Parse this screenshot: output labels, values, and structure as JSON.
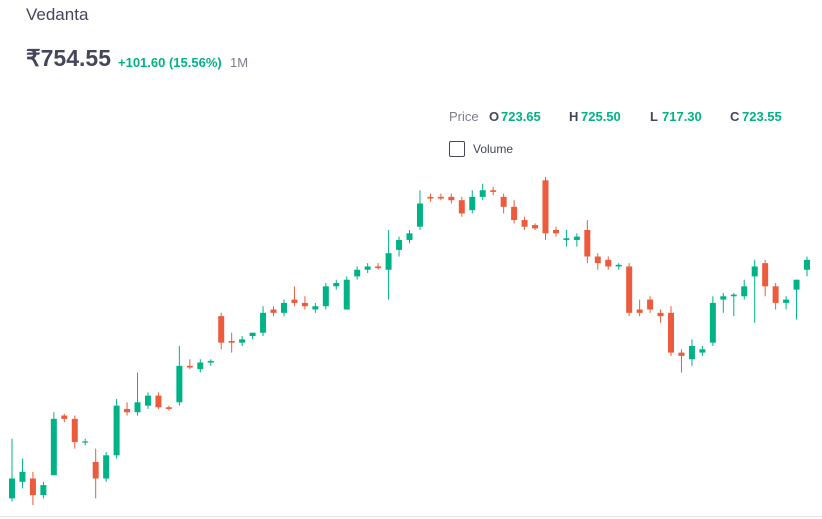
{
  "header": {
    "title": "Vedanta",
    "price": "₹754.55",
    "change": "+101.60 (15.56%)",
    "period": "1M"
  },
  "chart_data": {
    "type": "candlestick",
    "legend": {
      "label": "Price",
      "items": [
        {
          "key": "O",
          "value": "723.65"
        },
        {
          "key": "H",
          "value": "725.50"
        },
        {
          "key": "L",
          "value": "717.30"
        },
        {
          "key": "C",
          "value": "723.55"
        }
      ]
    },
    "volume_label": "Volume",
    "up_color": "#00b386",
    "down_color": "#eb5b3c",
    "open": [
      650,
      655,
      656,
      651,
      657,
      675,
      674,
      667,
      661,
      656,
      663,
      677,
      676,
      678,
      681,
      677.5,
      679,
      690,
      689,
      691,
      705,
      697.5,
      697,
      699,
      700,
      707,
      706,
      710,
      709,
      707,
      708,
      714,
      707,
      717,
      719,
      720,
      719,
      725,
      728,
      732,
      741,
      741,
      741,
      740,
      737,
      741,
      743,
      741,
      738,
      734,
      732.5,
      746,
      731,
      728,
      728,
      731,
      723,
      722,
      720,
      720,
      707,
      710,
      706,
      706,
      694,
      692,
      694,
      697,
      710,
      711,
      711,
      717,
      721,
      714,
      709,
      713,
      719
    ],
    "high": [
      668,
      662,
      658,
      655,
      676,
      675.5,
      675,
      668,
      665,
      664,
      680,
      679,
      688,
      682,
      682,
      678,
      696,
      692,
      692,
      692,
      706,
      700,
      699,
      700,
      708,
      708,
      710,
      714,
      711,
      709,
      715,
      716,
      717,
      720,
      721,
      721,
      731,
      729,
      731,
      743,
      742,
      742,
      742,
      741,
      743,
      745,
      744,
      742,
      740,
      735,
      733,
      747,
      732,
      731,
      730,
      734,
      724,
      723,
      721,
      721,
      710,
      711,
      707,
      708,
      695,
      698,
      696,
      711,
      712,
      712,
      716,
      722,
      722,
      715,
      711,
      716,
      723
    ],
    "low": [
      649,
      653,
      648,
      650,
      657,
      673,
      665,
      666,
      650,
      655,
      662,
      675,
      675,
      677,
      677,
      676.5,
      678,
      689,
      688,
      690,
      695,
      694,
      696,
      698,
      699,
      705,
      705,
      708,
      707,
      706,
      707,
      713,
      707,
      716,
      718,
      719,
      710,
      723,
      727,
      731,
      739.5,
      740,
      739,
      735,
      736,
      740,
      741.5,
      736,
      733,
      731,
      731,
      728,
      729,
      726,
      726,
      721,
      719,
      719,
      719,
      705,
      705,
      706,
      703,
      693,
      688,
      690,
      693,
      696,
      706,
      705,
      710,
      703,
      711,
      707,
      707,
      704,
      717
    ],
    "close": [
      656,
      658,
      651,
      654,
      674,
      674,
      667,
      667.2,
      656,
      663,
      678,
      676,
      679,
      681,
      677.5,
      677,
      690,
      689.5,
      691,
      691.5,
      697,
      697,
      698,
      700,
      706,
      706,
      709,
      709,
      708,
      708,
      714,
      715,
      716,
      719,
      720,
      719.5,
      724,
      728,
      730,
      739,
      740.5,
      740.5,
      740,
      736,
      741,
      743,
      742.5,
      738,
      734,
      732,
      731.5,
      730,
      730,
      728.5,
      729,
      723,
      721,
      720,
      720.5,
      706,
      706,
      707,
      705,
      694,
      693,
      696,
      695,
      709,
      711,
      711.5,
      714,
      720,
      714,
      709,
      710,
      716,
      722
    ]
  }
}
